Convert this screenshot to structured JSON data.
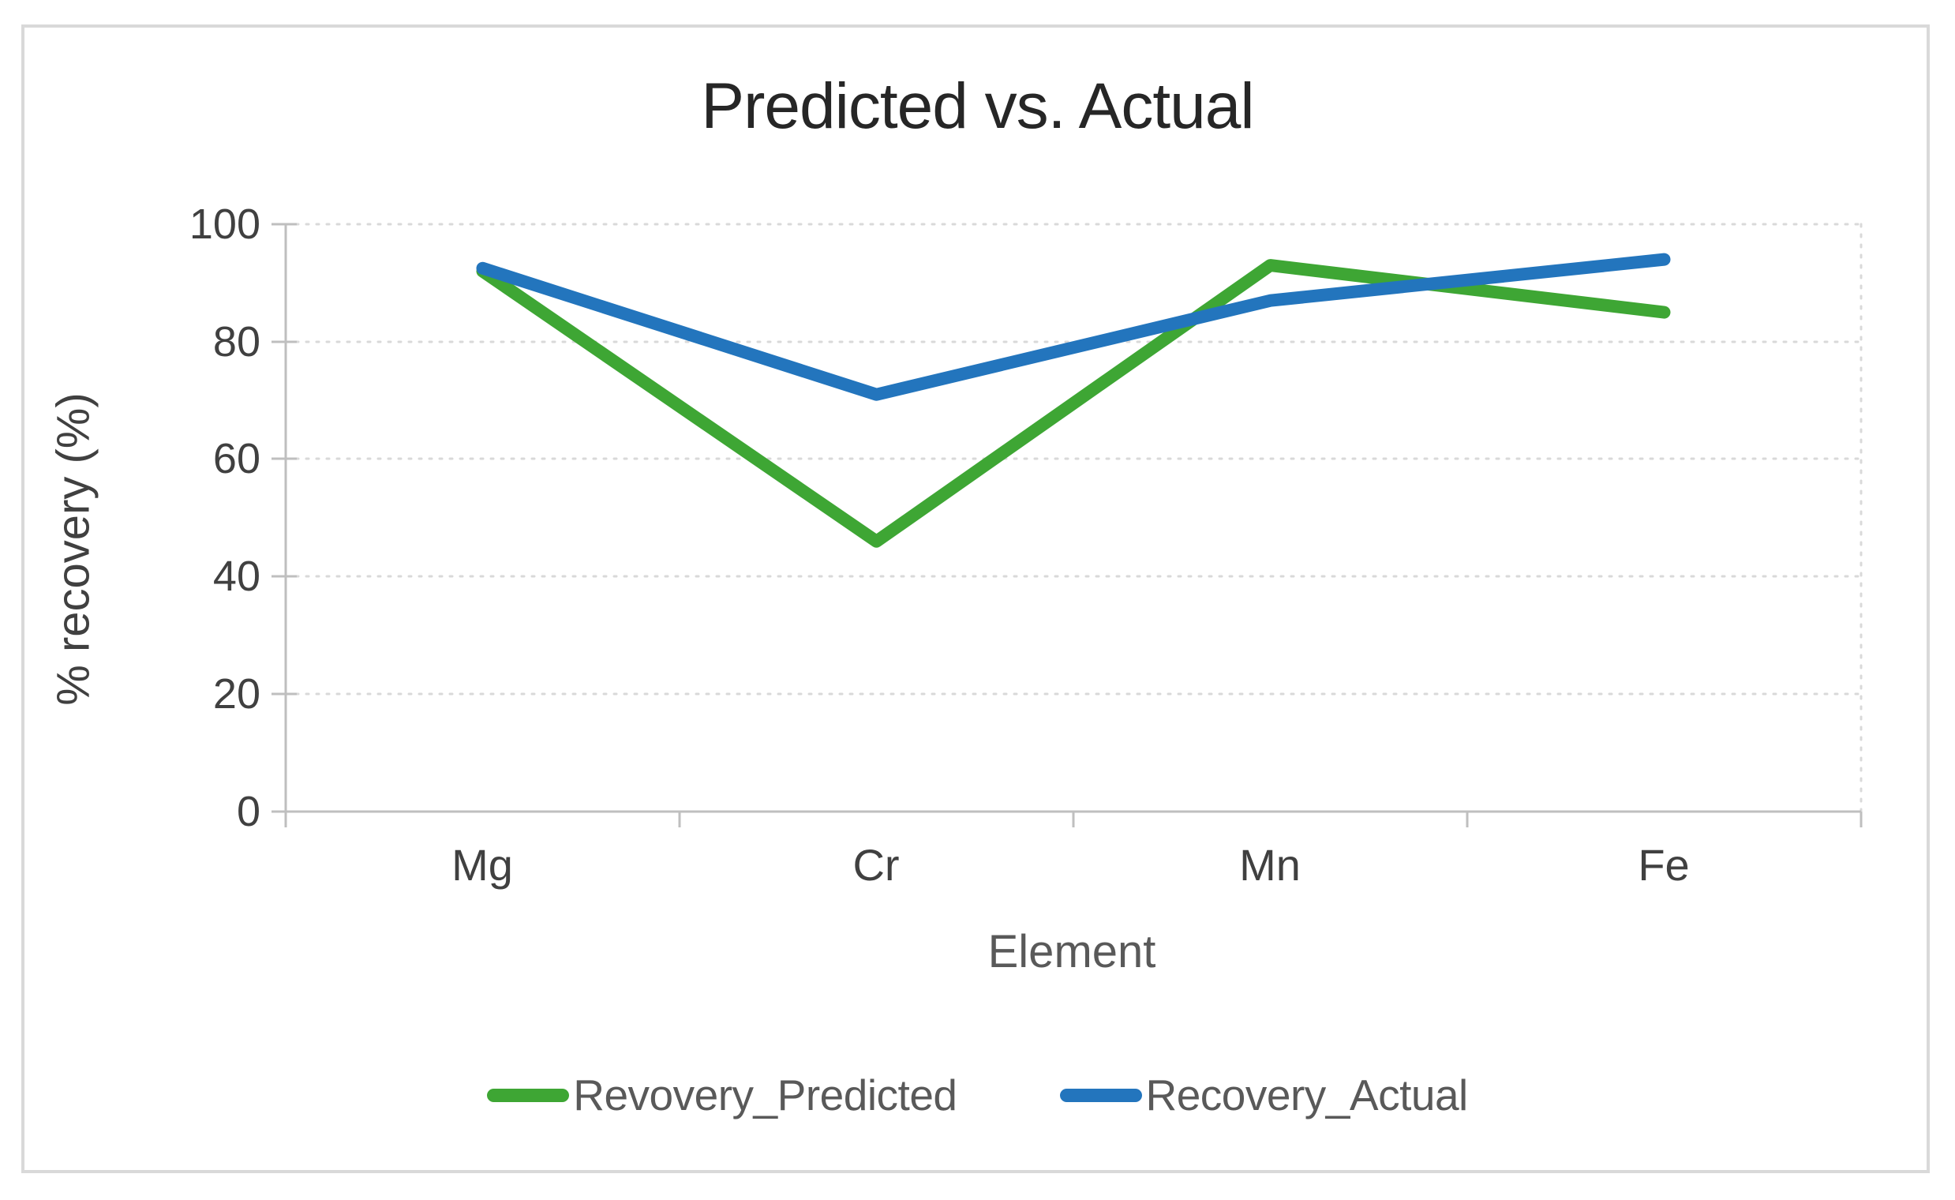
{
  "window": {
    "background_color": "#ffffff",
    "frame_border_color": "#D9D9D9"
  },
  "chart_data": {
    "type": "line",
    "title": "Predicted vs. Actual",
    "xlabel": "Element",
    "ylabel": "% recovery (%)",
    "categories": [
      "Mg",
      "Cr",
      "Mn",
      "Fe"
    ],
    "series": [
      {
        "name": "Revovery_Predicted",
        "color": "#3EA634",
        "values": [
          92,
          46,
          93,
          85
        ]
      },
      {
        "name": "Recovery_Actual",
        "color": "#2375BD",
        "values": [
          92.5,
          71,
          87,
          94
        ]
      }
    ],
    "ylim": [
      0,
      100
    ],
    "y_ticks": [
      100,
      80,
      60,
      40,
      20,
      0
    ],
    "grid": "horizontal-dotted",
    "gridline_color": "#D9D9D9",
    "axis_line_color": "#BFBFBF",
    "legend_position": "bottom",
    "line_width": 16
  }
}
